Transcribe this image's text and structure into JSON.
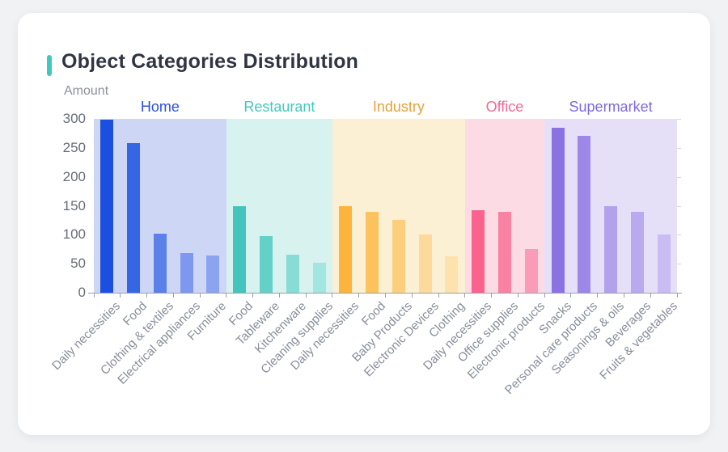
{
  "card": {
    "title": "Object Categories Distribution",
    "accent_color": "#3ec8c0",
    "background": "#ffffff",
    "page_background": "#f0f2f4"
  },
  "chart_data": {
    "type": "bar",
    "title": "Object Categories Distribution",
    "xlabel": "",
    "ylabel": "Amount",
    "ylim": [
      0,
      300
    ],
    "yticks": [
      0,
      50,
      100,
      150,
      200,
      250,
      300
    ],
    "grid": false,
    "legend_position": "group headers above plot",
    "axis_color": "#9aa0a9",
    "y_tick_label_color": "#676d78",
    "x_tick_label_color": "#878d9a",
    "x_label_rotation_deg": 45,
    "groups": [
      {
        "name": "Home",
        "label_color": "#2b50e0",
        "band_color": "#cdd7f5",
        "categories": [
          "Daily necessities",
          "Food",
          "Clothing & textiles",
          "Electrical appliances",
          "Furniture"
        ],
        "values": [
          298,
          258,
          102,
          69,
          64
        ],
        "bar_colors": [
          "#1a4fe0",
          "#3566e4",
          "#5b80ea",
          "#7d98ee",
          "#8ca4f0"
        ]
      },
      {
        "name": "Restaurant",
        "label_color": "#45c8bc",
        "band_color": "#d8f2ef",
        "categories": [
          "Food",
          "Tableware",
          "Kitchenware",
          "Cleaning supplies"
        ],
        "values": [
          149,
          97,
          65,
          51
        ],
        "bar_colors": [
          "#44c4bc",
          "#65d0c8",
          "#87dcd5",
          "#a3e6e0"
        ]
      },
      {
        "name": "Industry",
        "label_color": "#e5a33c",
        "band_color": "#fcf0d4",
        "categories": [
          "Daily necessities",
          "Food",
          "Baby Products",
          "Electronic Devices",
          "Clothing"
        ],
        "values": [
          150,
          139,
          126,
          100,
          63
        ],
        "bar_colors": [
          "#fcb43c",
          "#fcc25e",
          "#fccf7c",
          "#fdda9b",
          "#fde2ae"
        ]
      },
      {
        "name": "Office",
        "label_color": "#f5688f",
        "band_color": "#fcdbe5",
        "categories": [
          "Daily necessities",
          "Office supplies",
          "Electronic products"
        ],
        "values": [
          142,
          139,
          75
        ],
        "bar_colors": [
          "#f9638d",
          "#f981a2",
          "#fa9cb8"
        ]
      },
      {
        "name": "Supermarket",
        "label_color": "#7c6be0",
        "band_color": "#e5e0f8",
        "categories": [
          "Snacks",
          "Personal care products",
          "Seasonings & oils",
          "Beverages",
          "Fruits & vegetables"
        ],
        "values": [
          285,
          271,
          149,
          140,
          101
        ],
        "bar_colors": [
          "#8b72e3",
          "#9d87e7",
          "#b2a1ed",
          "#b9aaef",
          "#c8bcf3"
        ]
      }
    ]
  }
}
